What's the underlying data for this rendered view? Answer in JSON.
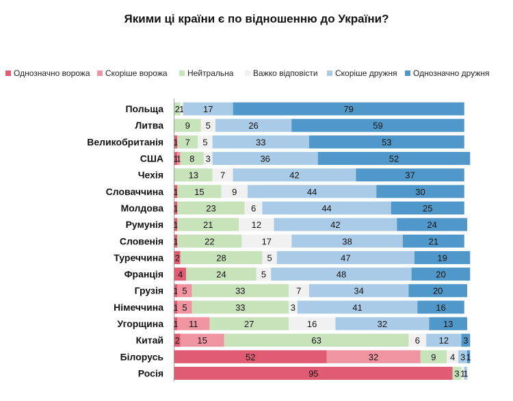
{
  "chart_data": {
    "type": "bar",
    "orientation": "horizontal",
    "stacked": true,
    "title": "Якими ці країни є по відношенню до України?",
    "xlim": [
      0,
      100
    ],
    "legend_position": "top",
    "categories": [
      "Польща",
      "Литва",
      "Великобританія",
      "США",
      "Чехія",
      "Словаччина",
      "Молдова",
      "Румунія",
      "Словенія",
      "Туреччина",
      "Франція",
      "Грузія",
      "Німеччина",
      "Угорщина",
      "Китай",
      "Білорусь",
      "Росія"
    ],
    "series": [
      {
        "name": "Однозначно ворожа",
        "color": "#e05c72",
        "values": [
          0,
          0,
          1,
          1,
          0,
          1,
          1,
          1,
          1,
          2,
          4,
          1,
          1,
          1,
          2,
          52,
          95
        ]
      },
      {
        "name": "Скоріше ворожа",
        "color": "#ef94a0",
        "values": [
          0,
          0,
          0,
          1,
          0,
          0,
          0,
          0,
          0,
          0,
          0,
          5,
          5,
          11,
          15,
          32,
          0
        ]
      },
      {
        "name": "Нейтральна",
        "color": "#c6e3ba",
        "values": [
          2,
          9,
          7,
          8,
          13,
          15,
          23,
          21,
          22,
          28,
          24,
          33,
          33,
          27,
          63,
          9,
          3
        ]
      },
      {
        "name": "Важко відповісти",
        "color": "#f1f1f1",
        "values": [
          1,
          5,
          5,
          3,
          7,
          9,
          6,
          12,
          17,
          5,
          5,
          7,
          3,
          16,
          6,
          4,
          1
        ]
      },
      {
        "name": "Скоріше дружня",
        "color": "#a9cbe7",
        "values": [
          17,
          26,
          33,
          36,
          42,
          44,
          44,
          42,
          38,
          47,
          48,
          34,
          41,
          32,
          12,
          3,
          1
        ]
      },
      {
        "name": "Однозначно дружня",
        "color": "#4f98c9",
        "values": [
          79,
          59,
          53,
          52,
          37,
          30,
          25,
          24,
          21,
          19,
          20,
          20,
          16,
          13,
          3,
          1,
          0
        ]
      }
    ]
  }
}
